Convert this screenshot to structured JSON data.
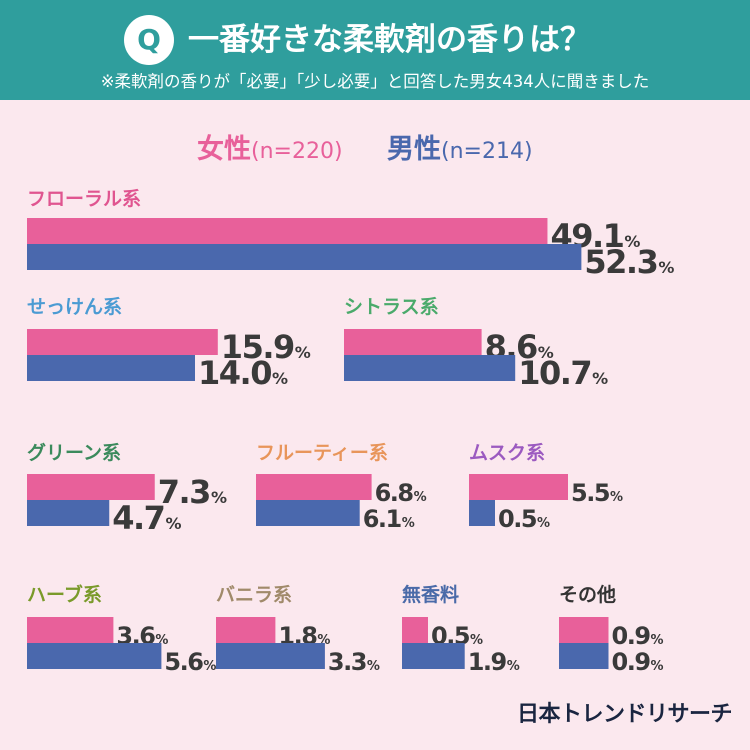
{
  "header": {
    "badge": "Q",
    "title": "一番好きな柔軟剤の香りは？",
    "subtitle": "※柔軟剤の香りが「必要」「少し必要」と回答した男女434人に聞きました"
  },
  "legend": {
    "female_label": "女性",
    "female_n": "(n=220)",
    "male_label": "男性",
    "male_n": "(n=214)"
  },
  "colors": {
    "female": "#e8609a",
    "male": "#4a68ad",
    "header": "#2f9e9d",
    "background": "#fbe8ee"
  },
  "footer": {
    "brand": "日本トレンドリサーチ"
  },
  "chart_data": {
    "type": "bar",
    "orientation": "horizontal",
    "unit": "%",
    "series": [
      {
        "name": "女性",
        "color": "#e8609a",
        "values": [
          49.1,
          15.9,
          8.6,
          7.3,
          6.8,
          5.5,
          3.6,
          1.8,
          0.5,
          0.9
        ]
      },
      {
        "name": "男性",
        "color": "#4a68ad",
        "values": [
          52.3,
          14.0,
          10.7,
          4.7,
          6.1,
          0.5,
          5.6,
          3.3,
          1.9,
          0.9
        ]
      }
    ],
    "categories": [
      {
        "label": "フローラル系",
        "color": "#e05590"
      },
      {
        "label": "せっけん系",
        "color": "#4b9bd3"
      },
      {
        "label": "シトラス系",
        "color": "#4aaa6b"
      },
      {
        "label": "グリーン系",
        "color": "#3b8a5c"
      },
      {
        "label": "フルーティー系",
        "color": "#e8955a"
      },
      {
        "label": "ムスク系",
        "color": "#9b5ac0"
      },
      {
        "label": "ハーブ系",
        "color": "#7a9a2a"
      },
      {
        "label": "バニラ系",
        "color": "#a08a6a"
      },
      {
        "label": "無香料",
        "color": "#4a6aa8"
      },
      {
        "label": "その他",
        "color": "#333333"
      }
    ]
  }
}
